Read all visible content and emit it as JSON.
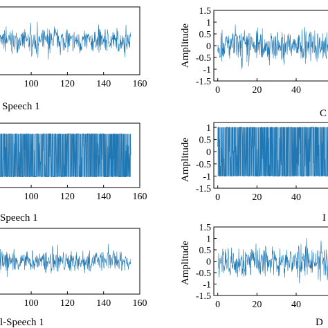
{
  "figure": {
    "captions": [
      "Speech 1",
      "Speech 1",
      "l-Speech 1",
      "C",
      "I",
      "D"
    ]
  },
  "colors": {
    "signal": "#1f77b4",
    "axis": "#000000"
  },
  "chart_data": [
    {
      "type": "line",
      "panel": "left-1",
      "caption": "Speech 1",
      "xlabel": "",
      "ylabel": "",
      "xticks": [
        100,
        120,
        140,
        160
      ],
      "xlim": [
        82,
        160
      ],
      "ylim": [
        -1.5,
        1.5
      ],
      "series": [
        {
          "envelope_min": -0.55,
          "envelope_max": 0.55,
          "x_start": 0,
          "x_end": 155
        }
      ]
    },
    {
      "type": "line",
      "panel": "left-2",
      "caption": "Speech 1",
      "xlabel": "",
      "ylabel": "",
      "xticks": [
        100,
        120,
        140,
        160
      ],
      "xlim": [
        82,
        160
      ],
      "ylim": [
        -1.5,
        1.5
      ],
      "series": [
        {
          "envelope_min": -1,
          "envelope_max": 1,
          "x_start": 0,
          "x_end": 155,
          "clipped": true
        }
      ]
    },
    {
      "type": "line",
      "panel": "left-3",
      "caption": "l-Speech 1",
      "xlabel": "",
      "ylabel": "",
      "xticks": [
        100,
        120,
        140,
        160
      ],
      "xlim": [
        82,
        160
      ],
      "ylim": [
        -1.5,
        1.5
      ],
      "series": [
        {
          "envelope_min": -0.5,
          "envelope_max": 0.5,
          "x_start": 0,
          "x_end": 155
        }
      ]
    },
    {
      "type": "line",
      "panel": "right-1",
      "caption": "C",
      "ylabel": "Amplitude",
      "xticks": [
        0,
        20,
        40
      ],
      "yticks": [
        1.5,
        1,
        0.5,
        0,
        -0.5,
        -1,
        -1.5
      ],
      "xlim": [
        -2,
        58
      ],
      "ylim": [
        -1.5,
        1.5
      ],
      "series": [
        {
          "envelope_min": -0.7,
          "envelope_max": 0.7,
          "x_start": 0,
          "x_end": 58
        }
      ]
    },
    {
      "type": "line",
      "panel": "right-2",
      "caption": "I",
      "ylabel": "Amplitude",
      "xticks": [
        0,
        20,
        40
      ],
      "yticks": [
        1,
        0.5,
        0,
        -0.5,
        -1,
        -1.5
      ],
      "xlim": [
        -2,
        58
      ],
      "ylim": [
        -1.5,
        1.2
      ],
      "series": [
        {
          "envelope_min": -1,
          "envelope_max": 1,
          "x_start": 0,
          "x_end": 58,
          "clipped": true
        }
      ]
    },
    {
      "type": "line",
      "panel": "right-3",
      "caption": "D",
      "ylabel": "Amplitude",
      "xticks": [
        0,
        20,
        40
      ],
      "yticks": [
        1.5,
        1,
        0.5,
        0,
        -0.5,
        -1,
        -1.5
      ],
      "xlim": [
        -2,
        58
      ],
      "ylim": [
        -1.5,
        1.5
      ],
      "series": [
        {
          "envelope_min": -0.7,
          "envelope_max": 0.7,
          "x_start": 0,
          "x_end": 58
        }
      ]
    }
  ]
}
